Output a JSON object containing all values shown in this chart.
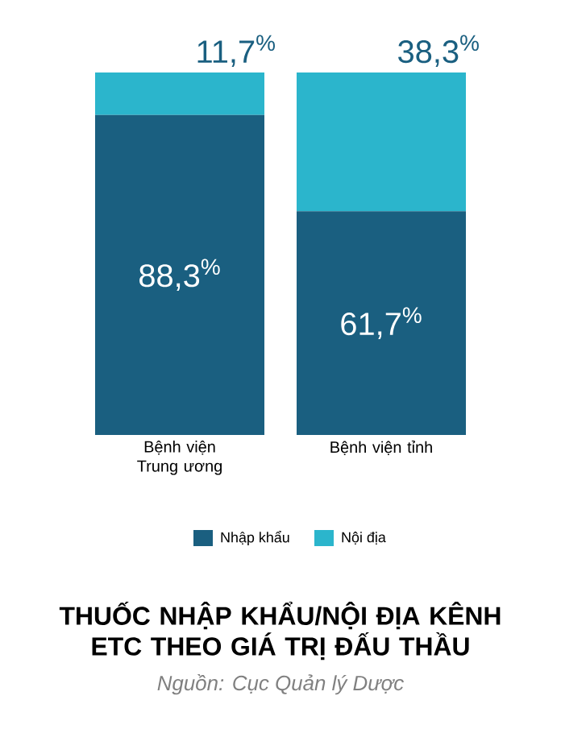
{
  "chart_data": {
    "type": "bar",
    "stacked": true,
    "title": "THUỐC NHẬP KHẨU/NỘI ĐỊA KÊNH ETC THEO GIÁ TRỊ ĐẤU THẦU",
    "annotations": [
      "Nguồn: Cục Quản lý Dược"
    ],
    "categories": [
      "Bệnh viện Trung ương",
      "Bệnh viện tỉnh"
    ],
    "series": [
      {
        "name": "Nhập khẩu",
        "color": "#1a5f80",
        "values": [
          88.3,
          61.7
        ],
        "value_labels": [
          "88,3$^{%}$",
          "61,7$^{%}$"
        ]
      },
      {
        "name": "Nội địa",
        "color": "#2bb5cc",
        "values": [
          11.7,
          38.3
        ],
        "value_labels": [
          "11,7$^{%}$",
          "38,3$^{%}$"
        ]
      }
    ],
    "ylim": [
      0,
      100
    ],
    "legend": "bottom"
  }
}
